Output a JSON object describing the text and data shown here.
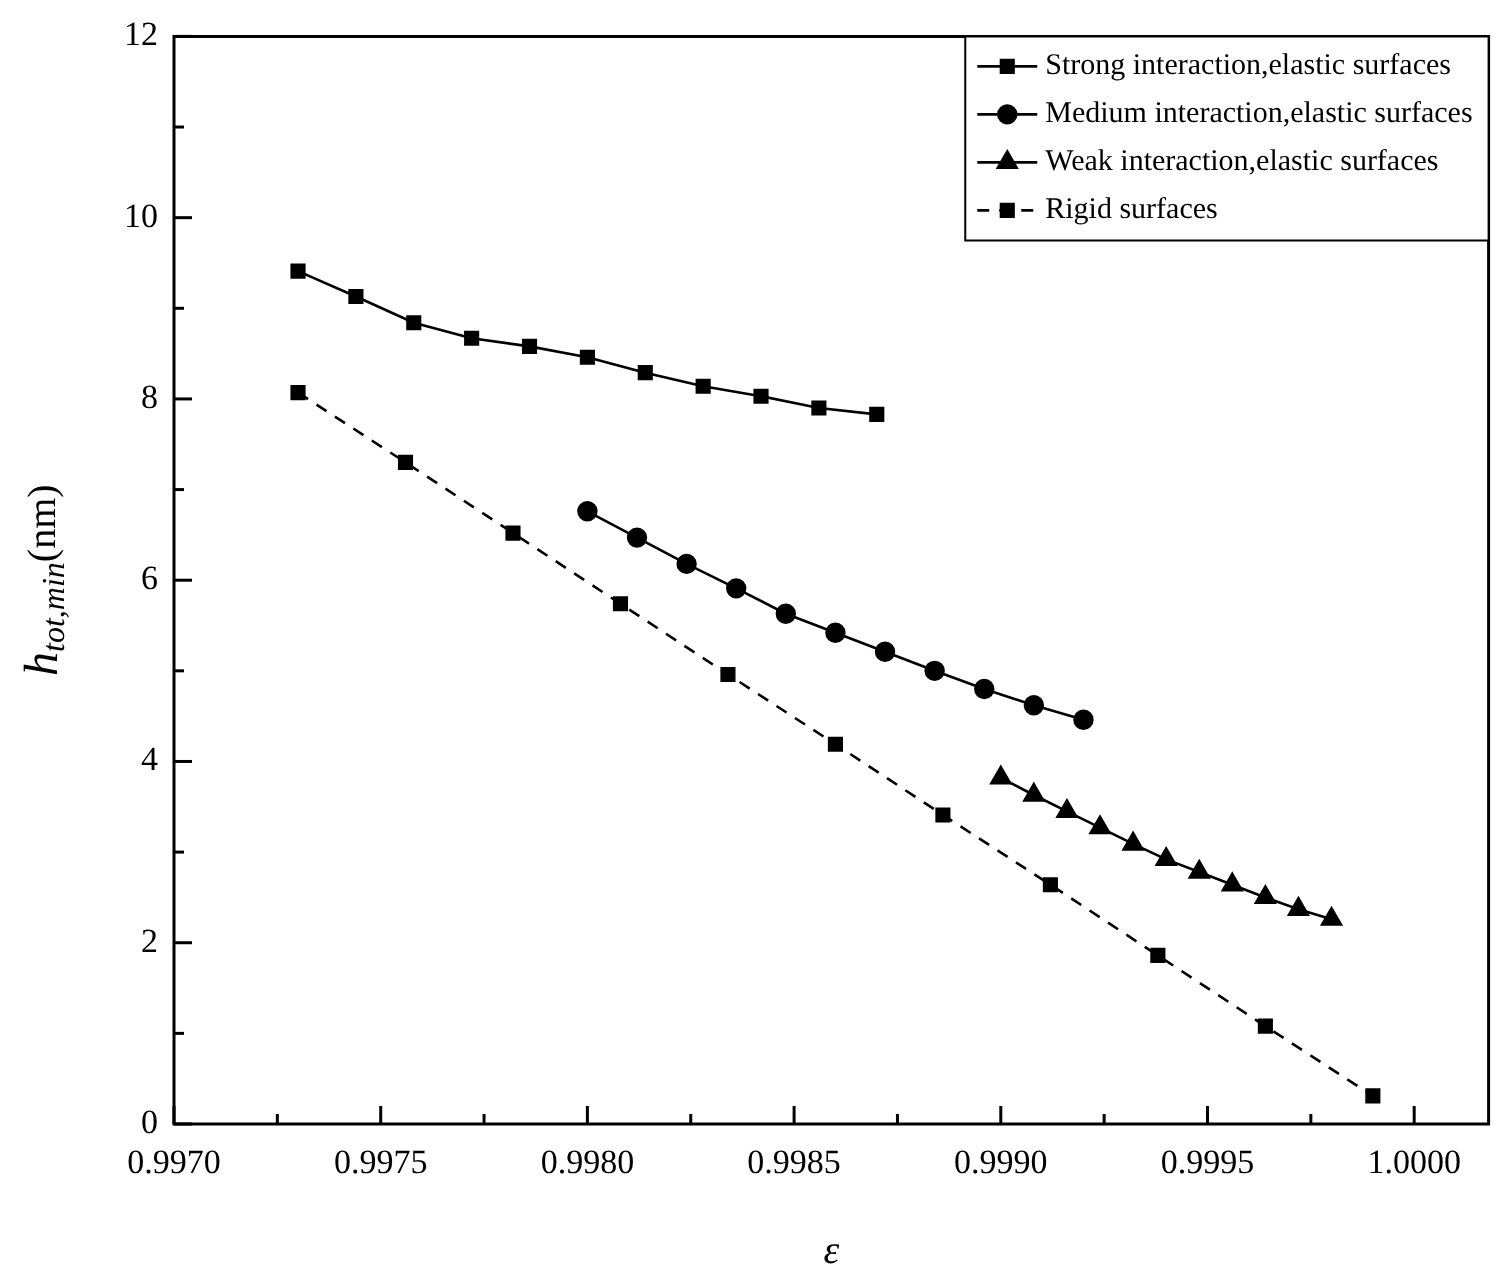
{
  "chart_data": {
    "type": "line",
    "xlabel": "ε",
    "ylabel": "h$_{tot,min}$(nm)",
    "xlim": [
      0.997,
      1.00018
    ],
    "xticks": [
      {
        "value": 0.997,
        "label": "0.9970"
      },
      {
        "value": 0.99725,
        "label": null
      },
      {
        "value": 0.9975,
        "label": "0.9975"
      },
      {
        "value": 0.99775,
        "label": null
      },
      {
        "value": 0.998,
        "label": "0.9980"
      },
      {
        "value": 0.99825,
        "label": null
      },
      {
        "value": 0.9985,
        "label": "0.9985"
      },
      {
        "value": 0.99875,
        "label": null
      },
      {
        "value": 0.999,
        "label": "0.9990"
      },
      {
        "value": 0.99925,
        "label": null
      },
      {
        "value": 0.9995,
        "label": "0.9995"
      },
      {
        "value": 0.99975,
        "label": null
      },
      {
        "value": 1,
        "label": "1.0000"
      }
    ],
    "ylim": [
      0,
      12
    ],
    "yticks": [
      0,
      {
        "value": 1,
        "label": null
      },
      2,
      {
        "value": 3,
        "label": null
      },
      4,
      {
        "value": 5,
        "label": null
      },
      6,
      {
        "value": 7,
        "label": null
      },
      8,
      {
        "value": 9,
        "label": null
      },
      10,
      {
        "value": 11,
        "label": null
      },
      12
    ],
    "grid": false,
    "legend": "top right",
    "series": [
      {
        "name": "Strong interaction,elastic surfaces",
        "color": "#000000",
        "marker": "square",
        "line_style": "solid",
        "x": [
          0.9973,
          0.99744,
          0.99758,
          0.99772,
          0.99786,
          0.998,
          0.99814,
          0.99828,
          0.99842,
          0.99856,
          0.9987
        ],
        "values": [
          9.41,
          9.13,
          8.84,
          8.67,
          8.58,
          8.46,
          8.29,
          8.14,
          8.03,
          7.9,
          7.83
        ]
      },
      {
        "name": "Medium interaction,elastic surfaces",
        "color": "#000000",
        "marker": "circle",
        "line_style": "solid",
        "x": [
          0.998,
          0.99812,
          0.99824,
          0.99836,
          0.99848,
          0.9986,
          0.99872,
          0.99884,
          0.99896,
          0.99908,
          0.9992
        ],
        "values": [
          6.76,
          6.47,
          6.18,
          5.91,
          5.63,
          5.42,
          5.21,
          5.0,
          4.8,
          4.62,
          4.46
        ]
      },
      {
        "name": "Weak interaction,elastic surfaces",
        "color": "#000000",
        "marker": "triangle",
        "line_style": "solid",
        "x": [
          0.999,
          0.99908,
          0.99916,
          0.99924,
          0.99932,
          0.9994,
          0.99948,
          0.99956,
          0.99964,
          0.99972,
          0.9998
        ],
        "values": [
          3.82,
          3.63,
          3.45,
          3.27,
          3.09,
          2.92,
          2.78,
          2.64,
          2.5,
          2.37,
          2.26
        ]
      },
      {
        "name": "Rigid surfaces",
        "color": "#000000",
        "marker": "square",
        "line_style": "dashed",
        "x": [
          0.9973,
          0.99756,
          0.99782,
          0.99808,
          0.99834,
          0.9986,
          0.99886,
          0.99912,
          0.99938,
          0.99964,
          0.9999
        ],
        "values": [
          8.07,
          7.3,
          6.52,
          5.74,
          4.96,
          4.19,
          3.41,
          2.64,
          1.86,
          1.08,
          0.31
        ]
      }
    ]
  }
}
